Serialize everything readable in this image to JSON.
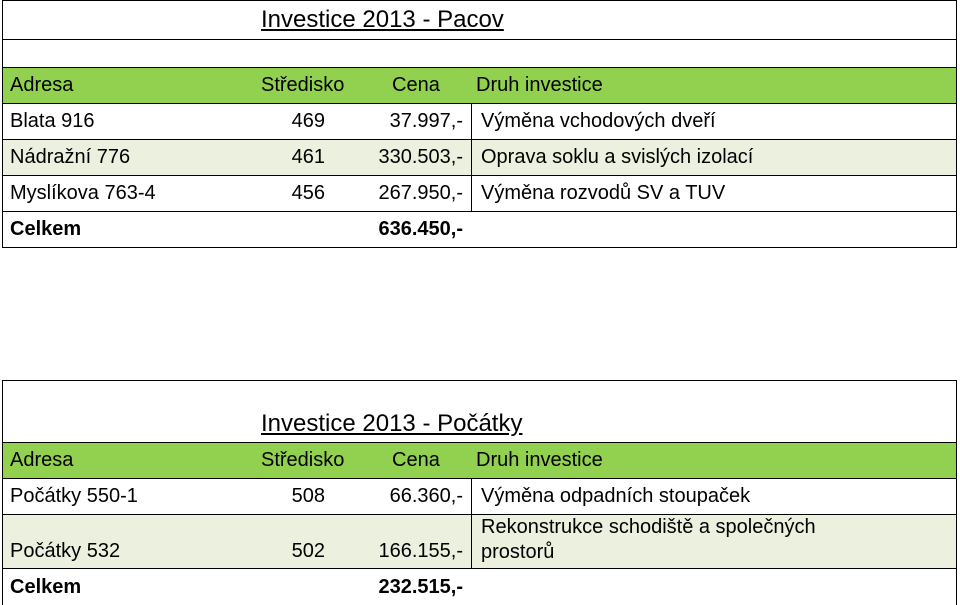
{
  "tables": [
    {
      "title": "Investice 2013 -  Pacov",
      "headers": [
        "Adresa",
        "Středisko",
        "Cena",
        "Druh investice"
      ],
      "rows": [
        {
          "adresa": "Blata 916",
          "stredisko": "469",
          "cena": "37.997,-",
          "druh": "Výměna vchodových dveří"
        },
        {
          "adresa": "Nádražní 776",
          "stredisko": "461",
          "cena": "330.503,-",
          "druh": "Oprava soklu a svislých izolací"
        },
        {
          "adresa": "Myslíkova 763-4",
          "stredisko": "456",
          "cena": "267.950,-",
          "druh": "Výměna rozvodů SV a TUV"
        }
      ],
      "total_label": "Celkem",
      "total_value": "636.450,-"
    },
    {
      "title": "Investice 2013 - Počátky",
      "headers": [
        "Adresa",
        "Středisko",
        "Cena",
        "Druh investice"
      ],
      "rows": [
        {
          "adresa": "Počátky 550-1",
          "stredisko": "508",
          "cena": "66.360,-",
          "druh": "Výměna odpadních stoupaček"
        },
        {
          "adresa": "Počátky 532",
          "stredisko": "502",
          "cena": "166.155,-",
          "druh": "Rekonstrukce schodiště a společných prostorů"
        }
      ],
      "total_label": "Celkem",
      "total_value": "232.515,-"
    }
  ],
  "colors": {
    "header_green": "#92d050",
    "row_light": "#ebf1de"
  }
}
